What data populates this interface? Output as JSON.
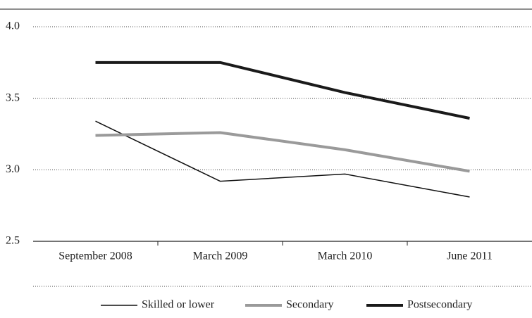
{
  "chart_data": {
    "type": "line",
    "categories": [
      "September 2008",
      "March 2009",
      "March 2010",
      "June 2011"
    ],
    "series": [
      {
        "name": "Skilled or lower",
        "color": "#111111",
        "width": 1.5,
        "values": [
          3.34,
          2.92,
          2.97,
          2.81
        ]
      },
      {
        "name": "Secondary",
        "color": "#9a9a9a",
        "width": 4,
        "values": [
          3.24,
          3.26,
          3.14,
          2.99
        ]
      },
      {
        "name": "Postsecondary",
        "color": "#1a1a1a",
        "width": 4,
        "values": [
          3.75,
          3.75,
          3.54,
          3.36
        ]
      }
    ],
    "ylim": [
      2.5,
      4.0
    ],
    "yticks": [
      {
        "value": 2.5,
        "label": "2.5"
      },
      {
        "value": 3.0,
        "label": "3.0"
      },
      {
        "value": 3.5,
        "label": "3.5"
      },
      {
        "value": 4.0,
        "label": "4.0"
      }
    ],
    "grid": true,
    "legend": "bottom"
  }
}
